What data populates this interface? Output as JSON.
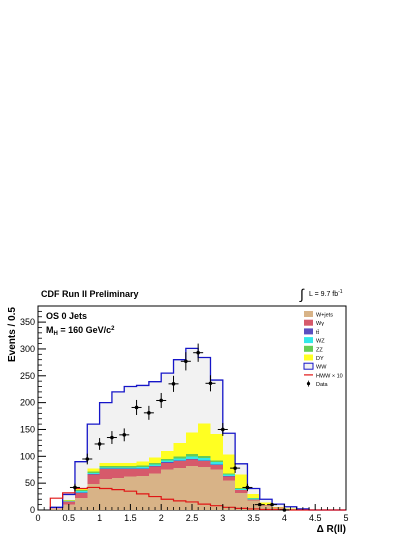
{
  "header": {
    "left_title": "CDF Run II Preliminary",
    "lumi_prefix": "∫",
    "lumi_label": "L = 9.7 fb",
    "lumi_sup": "-1"
  },
  "annotations": {
    "line1": "OS 0 Jets",
    "line2_prefix": "M",
    "line2_sub": "H",
    "line2_mid": " = 160 GeV/c",
    "line2_sup": "2"
  },
  "chart_data": {
    "type": "bar",
    "subtype": "stacked-histogram",
    "xlabel": "Δ R(ll)",
    "ylabel": "Events / 0.5",
    "xlim": [
      0,
      5
    ],
    "ylim": [
      0,
      380
    ],
    "xticks": [
      "0",
      "0.5",
      "1",
      "1.5",
      "2",
      "2.5",
      "3",
      "3.5",
      "4",
      "4.5",
      "5"
    ],
    "yticks": [
      "0",
      "50",
      "100",
      "150",
      "200",
      "250",
      "300",
      "350"
    ],
    "bin_edges": [
      0.2,
      0.4,
      0.6,
      0.8,
      1.0,
      1.2,
      1.4,
      1.6,
      1.8,
      2.0,
      2.2,
      2.4,
      2.6,
      2.8,
      3.0,
      3.2,
      3.4,
      3.6,
      3.8,
      4.0,
      4.2,
      4.4,
      4.6,
      4.8,
      5.0
    ],
    "series": [
      {
        "name": "W+jets",
        "color": "#d8b387",
        "values": [
          2,
          10,
          22,
          48,
          58,
          60,
          62,
          63,
          68,
          75,
          78,
          82,
          80,
          75,
          55,
          32,
          18,
          8,
          4,
          2,
          1,
          0,
          0,
          0
        ]
      },
      {
        "name": "Wγ",
        "color": "#d65a6b",
        "values": [
          1,
          6,
          10,
          18,
          18,
          16,
          14,
          13,
          13,
          13,
          13,
          12,
          11,
          9,
          7,
          5,
          2,
          1,
          1,
          0,
          0,
          0,
          0,
          0
        ]
      },
      {
        "name": "tt̄",
        "color": "#5a4fc0",
        "values": [
          0,
          0,
          1,
          1,
          1,
          1,
          1,
          1,
          1,
          1,
          1,
          1,
          1,
          1,
          1,
          0,
          0,
          0,
          0,
          0,
          0,
          0,
          0,
          0
        ]
      },
      {
        "name": "WZ",
        "color": "#33e8e8",
        "values": [
          0,
          1,
          2,
          2,
          2,
          2,
          2,
          3,
          3,
          3,
          4,
          5,
          5,
          4,
          3,
          2,
          1,
          0,
          0,
          0,
          0,
          0,
          0,
          0
        ]
      },
      {
        "name": "ZZ",
        "color": "#66cc55",
        "values": [
          0,
          1,
          2,
          3,
          3,
          3,
          3,
          3,
          3,
          3,
          4,
          4,
          4,
          3,
          2,
          2,
          1,
          0,
          0,
          0,
          0,
          0,
          0,
          0
        ]
      },
      {
        "name": "DY",
        "color": "#ffff22",
        "values": [
          0,
          1,
          3,
          5,
          6,
          6,
          6,
          7,
          10,
          15,
          25,
          40,
          60,
          50,
          35,
          25,
          8,
          5,
          1,
          1,
          0,
          0,
          0,
          0
        ]
      },
      {
        "name": "WW",
        "color": "#f2f2f2",
        "outline": "#1515c8",
        "values": [
          2,
          10,
          50,
          83,
          112,
          132,
          142,
          142,
          141,
          145,
          155,
          157,
          123,
          100,
          40,
          20,
          10,
          6,
          5,
          3,
          1,
          0,
          0,
          0
        ]
      }
    ],
    "hww_x10": {
      "name": "HWW × 10",
      "color": "#e01515",
      "values": [
        22,
        32,
        40,
        42,
        40,
        38,
        35,
        30,
        25,
        20,
        17,
        15,
        11,
        8,
        5,
        3,
        2,
        1,
        1,
        0,
        0,
        0,
        0,
        0
      ]
    },
    "data_points": {
      "name": "Data",
      "color": "#000000",
      "x": [
        0.6,
        0.8,
        1.0,
        1.2,
        1.4,
        1.6,
        1.8,
        2.0,
        2.2,
        2.4,
        2.6,
        2.8,
        3.0,
        3.2,
        3.4,
        3.6,
        3.8,
        4.0
      ],
      "y": [
        42,
        95,
        123,
        135,
        140,
        191,
        181,
        204,
        235,
        277,
        293,
        236,
        150,
        78,
        42,
        10,
        10,
        0
      ],
      "err": [
        7,
        10,
        11,
        12,
        12,
        14,
        13,
        14,
        15,
        17,
        17,
        15,
        12,
        9,
        7,
        3,
        3,
        0
      ]
    },
    "legend_position": "top-right",
    "grid": false
  }
}
